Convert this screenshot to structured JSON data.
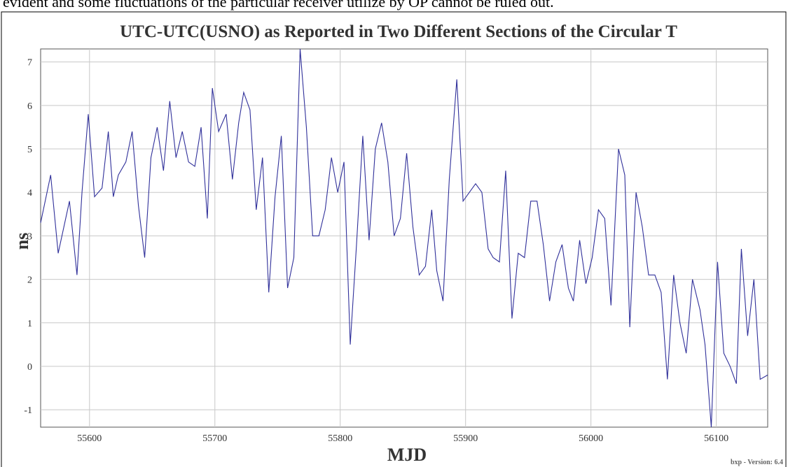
{
  "page_text": "evident and some fluctuations of the particular receiver utilize by OP cannot be ruled out.",
  "chart_data": {
    "type": "line",
    "title": "UTC-UTC(USNO) as Reported in Two Different Sections of the Circular T",
    "x_label": "MJD",
    "y_label": "ns",
    "footer": "bxp - Version: 6.4",
    "xlim": [
      55561,
      56141
    ],
    "ylim": [
      -1.4,
      7.3
    ],
    "xticks": [
      55600,
      55700,
      55800,
      55900,
      56000,
      56100
    ],
    "yticks": [
      -1,
      0,
      1,
      2,
      3,
      4,
      5,
      6,
      7
    ],
    "grid": true,
    "x": [
      55561,
      55569,
      55575,
      55584,
      55590,
      55594,
      55599,
      55604,
      55610,
      55615,
      55619,
      55623,
      55629,
      55634,
      55639,
      55644,
      55649,
      55654,
      55659,
      55664,
      55669,
      55674,
      55679,
      55684,
      55689,
      55694,
      55698,
      55703,
      55709,
      55714,
      55719,
      55723,
      55728,
      55733,
      55738,
      55743,
      55748,
      55753,
      55758,
      55763,
      55768,
      55773,
      55778,
      55783,
      55788,
      55793,
      55798,
      55803,
      55808,
      55813,
      55818,
      55823,
      55828,
      55833,
      55838,
      55843,
      55848,
      55853,
      55858,
      55863,
      55868,
      55873,
      55877,
      55882,
      55887,
      55893,
      55898,
      55903,
      55908,
      55913,
      55918,
      55922,
      55927,
      55932,
      55937,
      55942,
      55947,
      55952,
      55957,
      55962,
      55967,
      55972,
      55977,
      55982,
      55986,
      55991,
      55996,
      56001,
      56006,
      56011,
      56016,
      56022,
      56027,
      56031,
      56036,
      56041,
      56046,
      56051,
      56056,
      56061,
      56066,
      56071,
      56076,
      56081,
      56087,
      56091,
      56096,
      56101,
      56106,
      56111,
      56116,
      56120,
      56125,
      56130,
      56135,
      56141
    ],
    "series": [
      {
        "name": "UTC-UTC(USNO)",
        "color": "#30309a",
        "values": [
          3.3,
          4.4,
          2.6,
          3.8,
          2.1,
          4.0,
          5.8,
          3.9,
          4.1,
          5.4,
          3.9,
          4.4,
          4.7,
          5.4,
          3.7,
          2.5,
          4.8,
          5.5,
          4.5,
          6.1,
          4.8,
          5.4,
          4.7,
          4.6,
          5.5,
          3.4,
          6.4,
          5.4,
          5.8,
          4.3,
          5.6,
          6.3,
          5.9,
          3.6,
          4.8,
          1.7,
          3.9,
          5.3,
          1.8,
          2.5,
          7.3,
          5.5,
          3.0,
          3.0,
          3.6,
          4.8,
          4.0,
          4.7,
          0.5,
          2.8,
          5.3,
          2.9,
          5.0,
          5.6,
          4.7,
          3.0,
          3.4,
          4.9,
          3.2,
          2.1,
          2.3,
          3.6,
          2.2,
          1.5,
          4.3,
          6.6,
          3.8,
          4.0,
          4.2,
          4.0,
          2.7,
          2.5,
          2.4,
          4.5,
          1.1,
          2.6,
          2.5,
          3.8,
          3.8,
          2.8,
          1.5,
          2.4,
          2.8,
          1.8,
          1.5,
          2.9,
          1.9,
          2.5,
          3.6,
          3.4,
          1.4,
          5.0,
          4.4,
          0.9,
          4.0,
          3.2,
          2.1,
          2.1,
          1.7,
          -0.3,
          2.1,
          1.0,
          0.3,
          2.0,
          1.3,
          0.5,
          -1.4,
          2.4,
          0.3,
          0.0,
          -0.4,
          2.7,
          0.7,
          2.0,
          -0.3,
          -0.2
        ]
      }
    ]
  }
}
